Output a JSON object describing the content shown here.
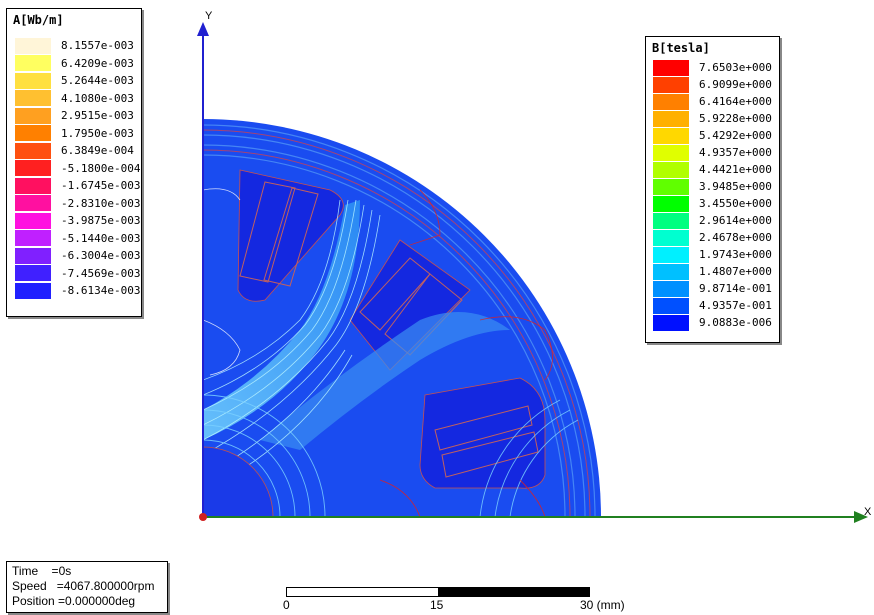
{
  "legend_a": {
    "title": "A[Wb/m]",
    "values": [
      "8.1557e-003",
      "6.4209e-003",
      "5.2644e-003",
      "4.1080e-003",
      "2.9515e-003",
      "1.7950e-003",
      "6.3849e-004",
      "-5.1800e-004",
      "-1.6745e-003",
      "-2.8310e-003",
      "-3.9875e-003",
      "-5.1440e-003",
      "-6.3004e-003",
      "-7.4569e-003",
      "-8.6134e-003"
    ],
    "colors": [
      "#fff5d8",
      "#ffff60",
      "#ffe040",
      "#ffc030",
      "#ffa020",
      "#ff8000",
      "#ff5010",
      "#ff2020",
      "#ff1060",
      "#ff10a0",
      "#ff10e0",
      "#c020ff",
      "#8020ff",
      "#4020ff",
      "#2020ff"
    ]
  },
  "legend_b": {
    "title": "B[tesla]",
    "values": [
      "7.6503e+000",
      "6.9099e+000",
      "6.4164e+000",
      "5.9228e+000",
      "5.4292e+000",
      "4.9357e+000",
      "4.4421e+000",
      "3.9485e+000",
      "3.4550e+000",
      "2.9614e+000",
      "2.4678e+000",
      "1.9743e+000",
      "1.4807e+000",
      "9.8714e-001",
      "4.9357e-001",
      "9.0883e-006"
    ],
    "colors": [
      "#ff0000",
      "#ff4000",
      "#ff8000",
      "#ffb000",
      "#ffd800",
      "#e0ff00",
      "#b0ff00",
      "#60ff00",
      "#00ff00",
      "#00ff80",
      "#00ffd0",
      "#00f0ff",
      "#00c0ff",
      "#0090ff",
      "#0050ff",
      "#0010ff"
    ]
  },
  "axes": {
    "x_label": "X",
    "y_label": "Y"
  },
  "info": {
    "time": "Time    =0s",
    "speed": "Speed   =4067.800000rpm",
    "position": "Position =0.000000deg"
  },
  "scale": {
    "ticks": [
      "0",
      "15",
      "30 (mm)"
    ]
  }
}
